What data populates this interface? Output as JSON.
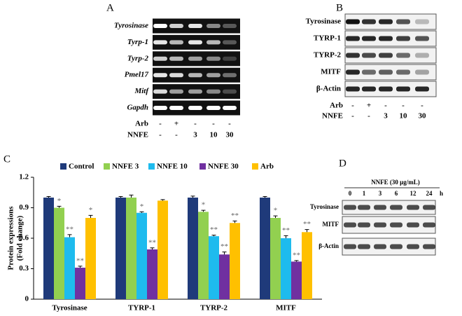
{
  "panel_labels": [
    "A",
    "B",
    "C",
    "D"
  ],
  "gel_a": {
    "rows": [
      "Tyrosinase",
      "Tyrp-1",
      "Tyrp-2",
      "Pmel17",
      "Mitf",
      "Gapdh"
    ],
    "treatments": [
      {
        "name": "Arb",
        "values": [
          "-",
          "+",
          "-",
          "-",
          "-"
        ]
      },
      {
        "name": "NNFE",
        "values": [
          "-",
          "-",
          "3",
          "10",
          "30"
        ]
      }
    ]
  },
  "gel_b": {
    "rows": [
      "Tyrosinase",
      "TYRP-1",
      "TYRP-2",
      "MITF",
      "β-Actin"
    ],
    "treatments": [
      {
        "name": "Arb",
        "values": [
          "-",
          "+",
          "-",
          "-",
          "-"
        ]
      },
      {
        "name": "NNFE",
        "values": [
          "-",
          "-",
          "3",
          "10",
          "30"
        ]
      }
    ]
  },
  "gel_d": {
    "title": "NNFE (30 μg/mL)",
    "lanes": [
      "0",
      "1",
      "3",
      "6",
      "12",
      "24"
    ],
    "unit": "h",
    "rows": [
      "Tyrosinase",
      "MITF",
      "β-Actin"
    ]
  },
  "chart_data": {
    "type": "bar",
    "ylabel": [
      "Protein expressions",
      "(Fold change)"
    ],
    "categories": [
      "Tyrosinase",
      "TYRP-1",
      "TYRP-2",
      "MITF"
    ],
    "series": [
      {
        "name": "Control",
        "color": "#1f3a7a",
        "values": [
          1.0,
          1.0,
          1.0,
          1.0
        ],
        "errors": [
          0.01,
          0.01,
          0.015,
          0.01
        ]
      },
      {
        "name": "NNFE 3",
        "color": "#92d050",
        "values": [
          0.9,
          1.0,
          0.86,
          0.8
        ],
        "errors": [
          0.015,
          0.025,
          0.015,
          0.02
        ],
        "significance": [
          "*",
          null,
          "*",
          "*"
        ]
      },
      {
        "name": "NNFE 10",
        "color": "#1ebbee",
        "values": [
          0.61,
          0.85,
          0.62,
          0.6
        ],
        "errors": [
          0.025,
          0.01,
          0.01,
          0.025
        ],
        "significance": [
          "**",
          "*",
          "**",
          "**"
        ]
      },
      {
        "name": "NNFE 30",
        "color": "#7030a0",
        "values": [
          0.31,
          0.49,
          0.44,
          0.37
        ],
        "errors": [
          0.015,
          0.015,
          0.025,
          0.01
        ],
        "significance": [
          "**",
          "**",
          "**",
          "**"
        ]
      },
      {
        "name": "Arb",
        "color": "#ffc000",
        "values": [
          0.8,
          0.97,
          0.75,
          0.66
        ],
        "errors": [
          0.025,
          0.01,
          0.02,
          0.025
        ],
        "significance": [
          "*",
          null,
          "**",
          "**"
        ]
      }
    ],
    "ylim": [
      0,
      1.2
    ],
    "yticks": [
      0,
      0.3,
      0.6,
      0.9,
      1.2
    ]
  }
}
